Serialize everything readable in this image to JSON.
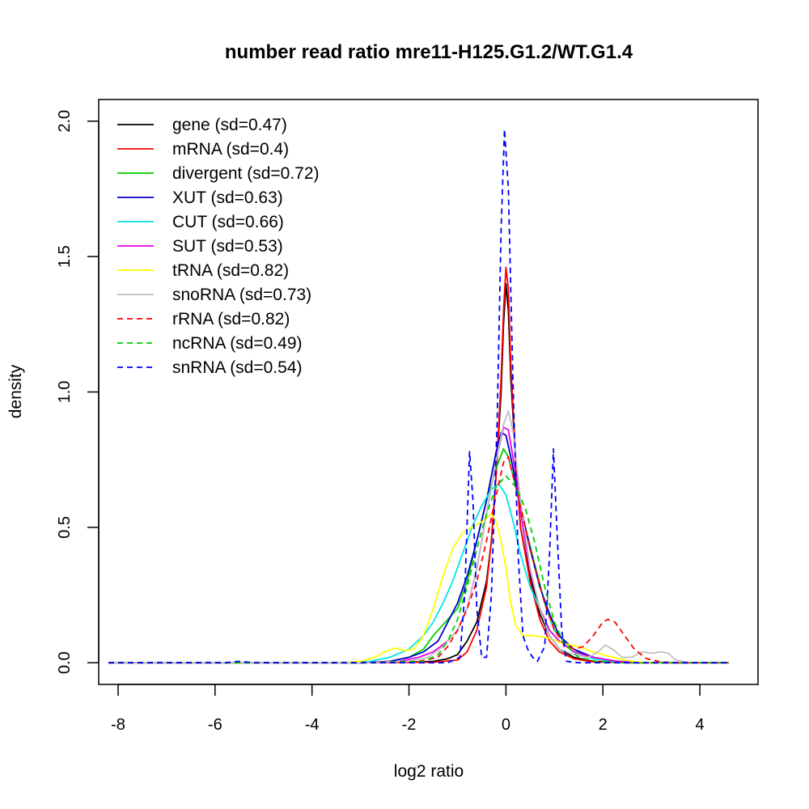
{
  "chart_data": {
    "type": "line",
    "title": "number read ratio mre11-H125.G1.2/WT.G1.4",
    "xlabel": "log2 ratio",
    "ylabel": "density",
    "xlim": [
      -8.4,
      5.2
    ],
    "ylim": [
      -0.08,
      2.08
    ],
    "xticks": [
      -8,
      -6,
      -4,
      -2,
      0,
      2,
      4
    ],
    "xtick_labels": [
      "-8",
      "-6",
      "-4",
      "-2",
      "0",
      "2",
      "4"
    ],
    "yticks": [
      0,
      0.5,
      1,
      1.5,
      2
    ],
    "ytick_labels": [
      "0.0",
      "0.5",
      "1.0",
      "1.5",
      "2.0"
    ],
    "grid": false,
    "legend_position": "top-left",
    "series": [
      {
        "name": "gene (sd=0.47)",
        "color": "#000000",
        "dash": "solid",
        "points": [
          [
            -8.2,
            0
          ],
          [
            -3.0,
            0
          ],
          [
            -2.0,
            0.002
          ],
          [
            -1.5,
            0.005
          ],
          [
            -1.2,
            0.015
          ],
          [
            -1.0,
            0.03
          ],
          [
            -0.8,
            0.08
          ],
          [
            -0.6,
            0.15
          ],
          [
            -0.4,
            0.3
          ],
          [
            -0.3,
            0.45
          ],
          [
            -0.2,
            0.7
          ],
          [
            -0.1,
            1.0
          ],
          [
            -0.05,
            1.25
          ],
          [
            0,
            1.4
          ],
          [
            0.05,
            1.3
          ],
          [
            0.1,
            1.05
          ],
          [
            0.2,
            0.75
          ],
          [
            0.3,
            0.5
          ],
          [
            0.5,
            0.32
          ],
          [
            0.7,
            0.18
          ],
          [
            0.9,
            0.1
          ],
          [
            1.1,
            0.05
          ],
          [
            1.4,
            0.02
          ],
          [
            1.8,
            0.005
          ],
          [
            2.5,
            0
          ],
          [
            4.6,
            0
          ]
        ]
      },
      {
        "name": "mRNA (sd=0.4)",
        "color": "#ff0000",
        "dash": "solid",
        "points": [
          [
            -8.2,
            0
          ],
          [
            -3.0,
            0
          ],
          [
            -1.5,
            0.002
          ],
          [
            -1.0,
            0.01
          ],
          [
            -0.8,
            0.04
          ],
          [
            -0.6,
            0.12
          ],
          [
            -0.4,
            0.28
          ],
          [
            -0.3,
            0.45
          ],
          [
            -0.2,
            0.7
          ],
          [
            -0.1,
            1.05
          ],
          [
            -0.05,
            1.3
          ],
          [
            0,
            1.46
          ],
          [
            0.05,
            1.38
          ],
          [
            0.1,
            1.1
          ],
          [
            0.2,
            0.75
          ],
          [
            0.3,
            0.5
          ],
          [
            0.5,
            0.3
          ],
          [
            0.7,
            0.16
          ],
          [
            0.9,
            0.08
          ],
          [
            1.1,
            0.04
          ],
          [
            1.4,
            0.015
          ],
          [
            1.8,
            0.003
          ],
          [
            2.5,
            0
          ],
          [
            4.6,
            0
          ]
        ]
      },
      {
        "name": "divergent (sd=0.72)",
        "color": "#00cc00",
        "dash": "solid",
        "points": [
          [
            -8.2,
            0
          ],
          [
            -3.0,
            0
          ],
          [
            -2.4,
            0.005
          ],
          [
            -2.0,
            0.02
          ],
          [
            -1.7,
            0.05
          ],
          [
            -1.5,
            0.1
          ],
          [
            -1.2,
            0.16
          ],
          [
            -1.0,
            0.2
          ],
          [
            -0.8,
            0.3
          ],
          [
            -0.6,
            0.45
          ],
          [
            -0.4,
            0.6
          ],
          [
            -0.2,
            0.72
          ],
          [
            -0.05,
            0.79
          ],
          [
            0.05,
            0.76
          ],
          [
            0.2,
            0.65
          ],
          [
            0.4,
            0.5
          ],
          [
            0.6,
            0.36
          ],
          [
            0.8,
            0.22
          ],
          [
            1.0,
            0.12
          ],
          [
            1.3,
            0.06
          ],
          [
            1.6,
            0.03
          ],
          [
            2.0,
            0.01
          ],
          [
            2.5,
            0.003
          ],
          [
            3.0,
            0
          ],
          [
            4.6,
            0
          ]
        ]
      },
      {
        "name": "XUT (sd=0.63)",
        "color": "#0000cc",
        "dash": "solid",
        "points": [
          [
            -8.2,
            0
          ],
          [
            -3.0,
            0
          ],
          [
            -2.4,
            0.005
          ],
          [
            -2.0,
            0.02
          ],
          [
            -1.7,
            0.04
          ],
          [
            -1.4,
            0.08
          ],
          [
            -1.2,
            0.15
          ],
          [
            -1.0,
            0.22
          ],
          [
            -0.8,
            0.32
          ],
          [
            -0.6,
            0.45
          ],
          [
            -0.4,
            0.6
          ],
          [
            -0.2,
            0.78
          ],
          [
            -0.1,
            0.85
          ],
          [
            0,
            0.84
          ],
          [
            0.1,
            0.76
          ],
          [
            0.3,
            0.58
          ],
          [
            0.5,
            0.42
          ],
          [
            0.7,
            0.28
          ],
          [
            0.9,
            0.18
          ],
          [
            1.1,
            0.1
          ],
          [
            1.4,
            0.05
          ],
          [
            1.8,
            0.02
          ],
          [
            2.2,
            0.005
          ],
          [
            3.0,
            0
          ],
          [
            4.6,
            0
          ]
        ]
      },
      {
        "name": "CUT (sd=0.66)",
        "color": "#00e5e5",
        "dash": "solid",
        "points": [
          [
            -8.2,
            0
          ],
          [
            -3.2,
            0
          ],
          [
            -2.8,
            0.005
          ],
          [
            -2.4,
            0.02
          ],
          [
            -2.0,
            0.05
          ],
          [
            -1.7,
            0.1
          ],
          [
            -1.5,
            0.15
          ],
          [
            -1.3,
            0.22
          ],
          [
            -1.1,
            0.3
          ],
          [
            -0.9,
            0.4
          ],
          [
            -0.7,
            0.5
          ],
          [
            -0.5,
            0.58
          ],
          [
            -0.3,
            0.64
          ],
          [
            -0.15,
            0.66
          ],
          [
            0,
            0.62
          ],
          [
            0.15,
            0.52
          ],
          [
            0.3,
            0.4
          ],
          [
            0.5,
            0.28
          ],
          [
            0.7,
            0.2
          ],
          [
            0.9,
            0.12
          ],
          [
            1.1,
            0.08
          ],
          [
            1.4,
            0.04
          ],
          [
            1.8,
            0.015
          ],
          [
            2.3,
            0.004
          ],
          [
            3.0,
            0
          ],
          [
            4.6,
            0
          ]
        ]
      },
      {
        "name": "SUT (sd=0.53)",
        "color": "#e500e5",
        "dash": "solid",
        "points": [
          [
            -8.2,
            0
          ],
          [
            -3.0,
            0
          ],
          [
            -2.2,
            0.005
          ],
          [
            -1.8,
            0.02
          ],
          [
            -1.5,
            0.04
          ],
          [
            -1.2,
            0.08
          ],
          [
            -1.0,
            0.12
          ],
          [
            -0.8,
            0.2
          ],
          [
            -0.6,
            0.35
          ],
          [
            -0.4,
            0.55
          ],
          [
            -0.2,
            0.75
          ],
          [
            -0.05,
            0.87
          ],
          [
            0.05,
            0.86
          ],
          [
            0.2,
            0.7
          ],
          [
            0.35,
            0.5
          ],
          [
            0.5,
            0.34
          ],
          [
            0.7,
            0.2
          ],
          [
            0.9,
            0.12
          ],
          [
            1.1,
            0.08
          ],
          [
            1.4,
            0.04
          ],
          [
            1.8,
            0.02
          ],
          [
            2.3,
            0.005
          ],
          [
            3.0,
            0
          ],
          [
            4.6,
            0
          ]
        ]
      },
      {
        "name": "tRNA (sd=0.82)",
        "color": "#ffff00",
        "dash": "solid",
        "points": [
          [
            -8.2,
            0
          ],
          [
            -3.4,
            0
          ],
          [
            -3.0,
            0.005
          ],
          [
            -2.7,
            0.02
          ],
          [
            -2.5,
            0.04
          ],
          [
            -2.3,
            0.055
          ],
          [
            -2.1,
            0.045
          ],
          [
            -1.9,
            0.05
          ],
          [
            -1.7,
            0.1
          ],
          [
            -1.5,
            0.2
          ],
          [
            -1.3,
            0.32
          ],
          [
            -1.1,
            0.42
          ],
          [
            -0.9,
            0.48
          ],
          [
            -0.7,
            0.5
          ],
          [
            -0.5,
            0.52
          ],
          [
            -0.3,
            0.55
          ],
          [
            -0.2,
            0.52
          ],
          [
            -0.1,
            0.45
          ],
          [
            0,
            0.35
          ],
          [
            0.1,
            0.22
          ],
          [
            0.2,
            0.14
          ],
          [
            0.35,
            0.1
          ],
          [
            0.6,
            0.1
          ],
          [
            0.9,
            0.09
          ],
          [
            1.2,
            0.07
          ],
          [
            1.5,
            0.06
          ],
          [
            1.8,
            0.04
          ],
          [
            2.2,
            0.02
          ],
          [
            2.6,
            0.005
          ],
          [
            3.0,
            0
          ],
          [
            4.6,
            0
          ]
        ]
      },
      {
        "name": "snoRNA (sd=0.73)",
        "color": "#c0c0c0",
        "dash": "solid",
        "points": [
          [
            -8.2,
            0
          ],
          [
            -3.0,
            0
          ],
          [
            -2.0,
            0.005
          ],
          [
            -1.6,
            0.02
          ],
          [
            -1.3,
            0.06
          ],
          [
            -1.0,
            0.12
          ],
          [
            -0.8,
            0.2
          ],
          [
            -0.6,
            0.35
          ],
          [
            -0.4,
            0.55
          ],
          [
            -0.2,
            0.75
          ],
          [
            -0.05,
            0.88
          ],
          [
            0.05,
            0.93
          ],
          [
            0.15,
            0.85
          ],
          [
            0.3,
            0.6
          ],
          [
            0.5,
            0.35
          ],
          [
            0.7,
            0.2
          ],
          [
            0.9,
            0.1
          ],
          [
            1.1,
            0.05
          ],
          [
            1.4,
            0.03
          ],
          [
            1.7,
            0.02
          ],
          [
            1.9,
            0.04
          ],
          [
            2.05,
            0.065
          ],
          [
            2.2,
            0.05
          ],
          [
            2.4,
            0.02
          ],
          [
            2.6,
            0.02
          ],
          [
            2.8,
            0.04
          ],
          [
            3.0,
            0.035
          ],
          [
            3.2,
            0.04
          ],
          [
            3.35,
            0.035
          ],
          [
            3.5,
            0.01
          ],
          [
            3.8,
            0
          ],
          [
            4.6,
            0
          ]
        ]
      },
      {
        "name": "rRNA (sd=0.82)",
        "color": "#ff0000",
        "dash": "dashed",
        "points": [
          [
            -8.2,
            0
          ],
          [
            -3.0,
            0
          ],
          [
            -1.8,
            0.005
          ],
          [
            -1.4,
            0.02
          ],
          [
            -1.2,
            0.06
          ],
          [
            -1.0,
            0.12
          ],
          [
            -0.8,
            0.2
          ],
          [
            -0.6,
            0.3
          ],
          [
            -0.4,
            0.45
          ],
          [
            -0.2,
            0.62
          ],
          [
            -0.05,
            0.74
          ],
          [
            0.05,
            0.76
          ],
          [
            0.2,
            0.65
          ],
          [
            0.4,
            0.5
          ],
          [
            0.6,
            0.35
          ],
          [
            0.8,
            0.22
          ],
          [
            1.0,
            0.12
          ],
          [
            1.2,
            0.07
          ],
          [
            1.4,
            0.05
          ],
          [
            1.6,
            0.06
          ],
          [
            1.8,
            0.1
          ],
          [
            2.0,
            0.15
          ],
          [
            2.1,
            0.16
          ],
          [
            2.25,
            0.15
          ],
          [
            2.45,
            0.1
          ],
          [
            2.65,
            0.05
          ],
          [
            2.9,
            0.015
          ],
          [
            3.2,
            0.003
          ],
          [
            3.5,
            0
          ],
          [
            4.6,
            0
          ]
        ]
      },
      {
        "name": "ncRNA (sd=0.49)",
        "color": "#00cc00",
        "dash": "dashed",
        "points": [
          [
            -8.2,
            0
          ],
          [
            -3.0,
            0
          ],
          [
            -1.7,
            0.005
          ],
          [
            -1.4,
            0.03
          ],
          [
            -1.2,
            0.08
          ],
          [
            -1.0,
            0.16
          ],
          [
            -0.8,
            0.28
          ],
          [
            -0.6,
            0.42
          ],
          [
            -0.4,
            0.55
          ],
          [
            -0.2,
            0.65
          ],
          [
            0,
            0.69
          ],
          [
            0.2,
            0.65
          ],
          [
            0.4,
            0.57
          ],
          [
            0.6,
            0.44
          ],
          [
            0.8,
            0.28
          ],
          [
            1.0,
            0.15
          ],
          [
            1.2,
            0.07
          ],
          [
            1.5,
            0.02
          ],
          [
            1.9,
            0.004
          ],
          [
            2.4,
            0
          ],
          [
            4.6,
            0
          ]
        ]
      },
      {
        "name": "snRNA (sd=0.54)",
        "color": "#0000ff",
        "dash": "dashed",
        "points": [
          [
            -8.2,
            0
          ],
          [
            -5.8,
            0
          ],
          [
            -5.5,
            0.005
          ],
          [
            -5.2,
            0
          ],
          [
            -1.2,
            0
          ],
          [
            -0.95,
            0.02
          ],
          [
            -0.85,
            0.25
          ],
          [
            -0.75,
            0.78
          ],
          [
            -0.68,
            0.6
          ],
          [
            -0.6,
            0.2
          ],
          [
            -0.5,
            0.02
          ],
          [
            -0.4,
            0.02
          ],
          [
            -0.3,
            0.25
          ],
          [
            -0.18,
            0.9
          ],
          [
            -0.1,
            1.6
          ],
          [
            -0.03,
            1.97
          ],
          [
            0.05,
            1.75
          ],
          [
            0.15,
            1.0
          ],
          [
            0.25,
            0.4
          ],
          [
            0.35,
            0.1
          ],
          [
            0.45,
            0.05
          ],
          [
            0.55,
            0.02
          ],
          [
            0.65,
            0.005
          ],
          [
            0.8,
            0.06
          ],
          [
            0.9,
            0.4
          ],
          [
            0.98,
            0.79
          ],
          [
            1.05,
            0.5
          ],
          [
            1.15,
            0.12
          ],
          [
            1.25,
            0.005
          ],
          [
            1.5,
            0
          ],
          [
            4.6,
            0
          ]
        ]
      }
    ]
  }
}
